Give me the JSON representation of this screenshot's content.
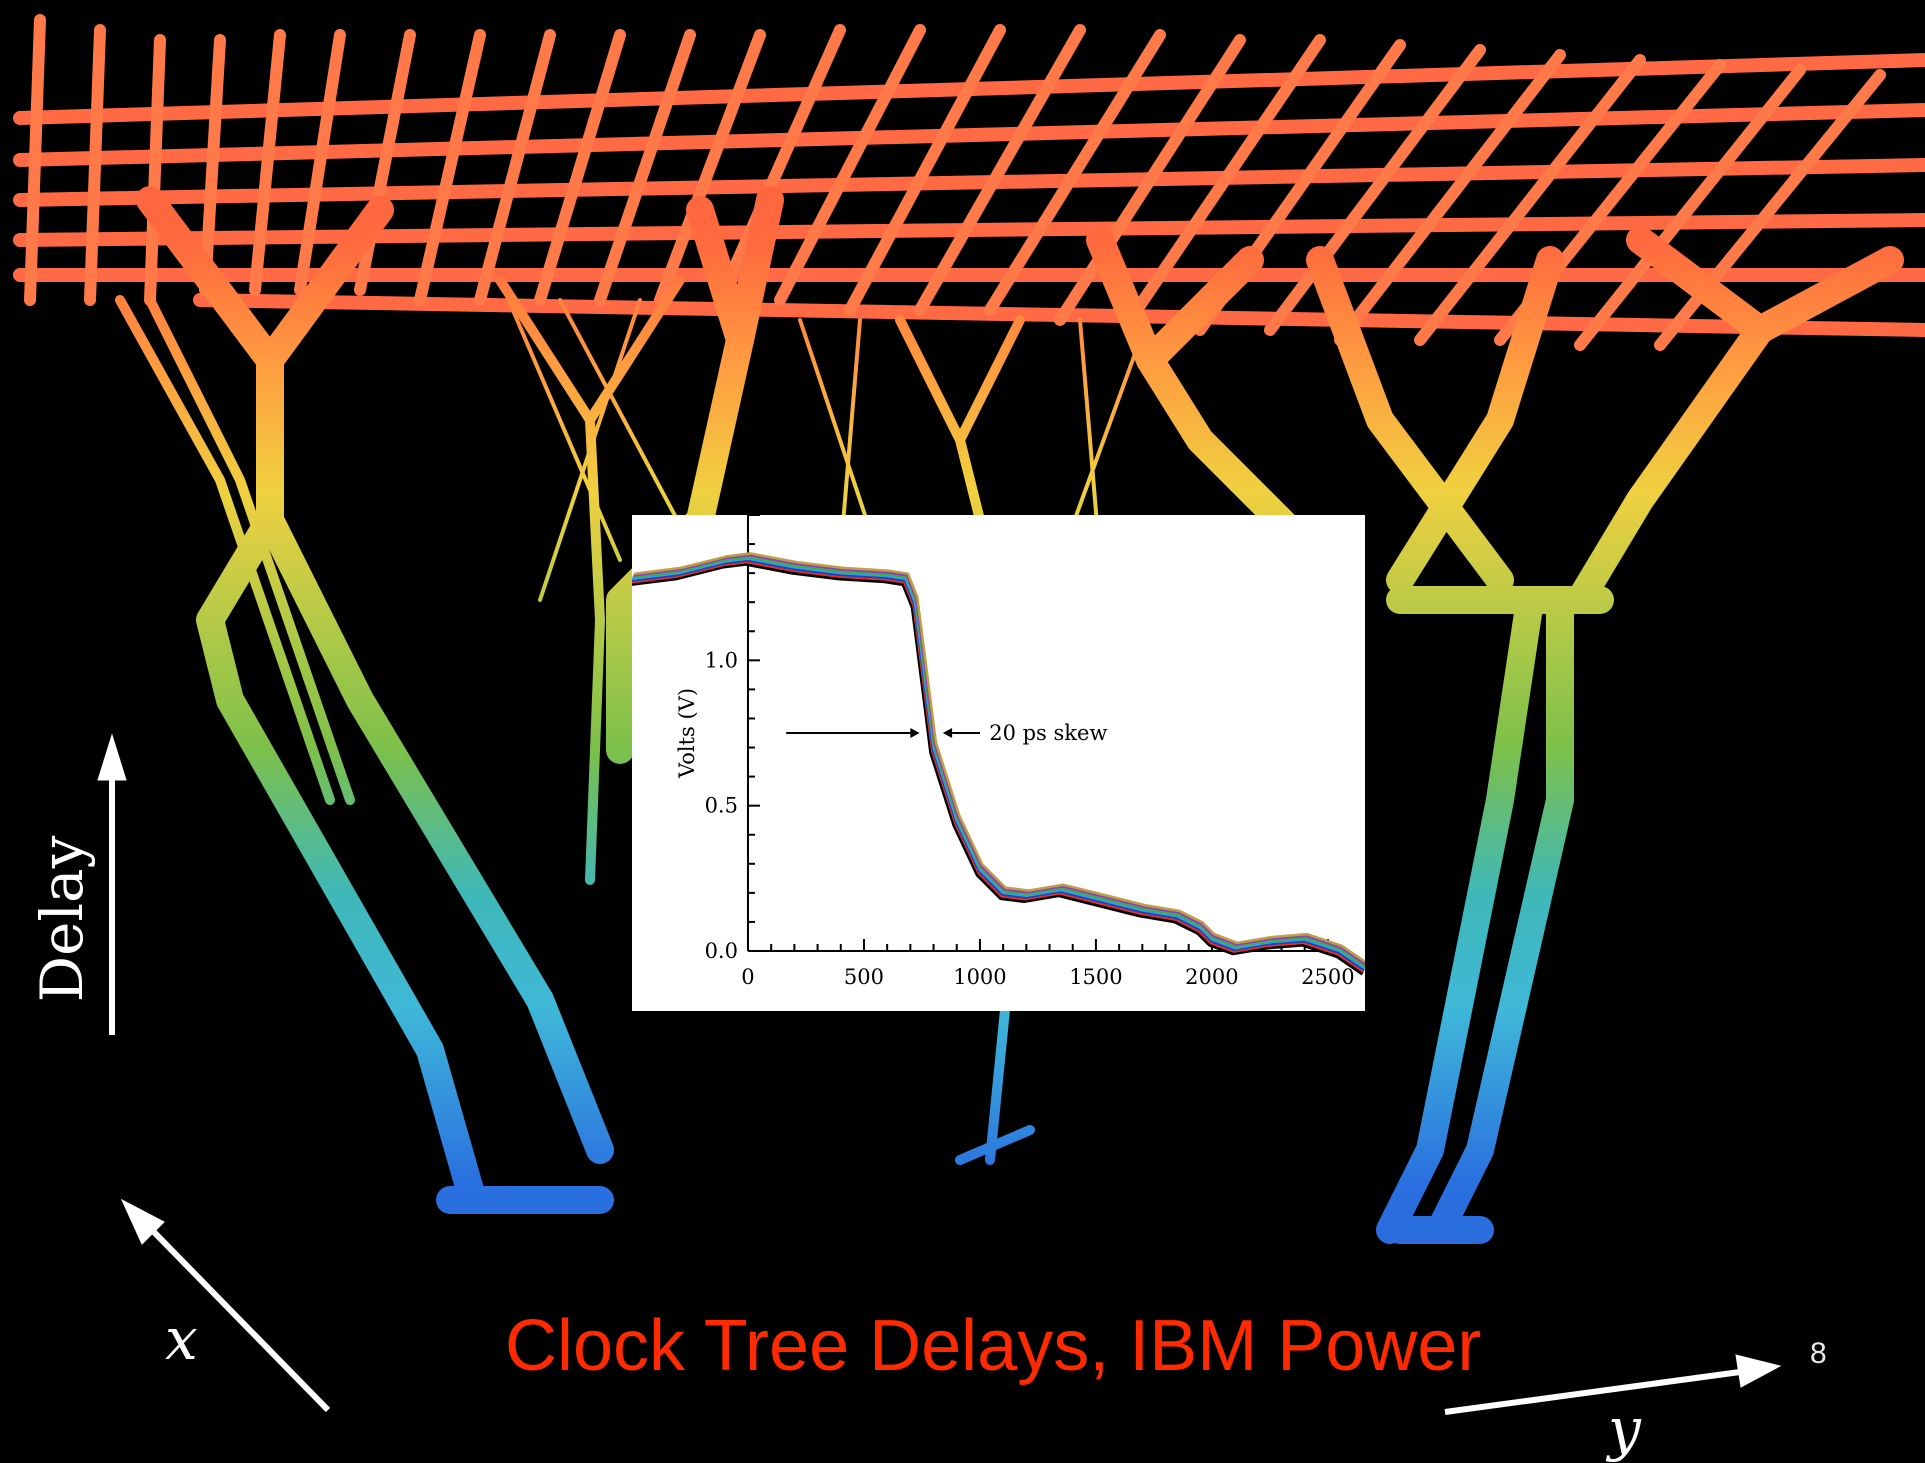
{
  "slide": {
    "title": "Clock Tree Delays, IBM Power",
    "page_number": "8",
    "axis_words": {
      "delay": "Delay",
      "x": "x",
      "y": "y"
    }
  },
  "colors": {
    "background": "#000000",
    "title": "#ff2a00",
    "tree_top": "#ff5a3c",
    "tree_upper": "#ff9a40",
    "tree_mid": "#f0d040",
    "tree_green": "#7cc04a",
    "tree_cyan": "#3fb8d8",
    "tree_bottom": "#2a70e0"
  },
  "chart_data": {
    "type": "line",
    "ylabel": "Volts  (V)",
    "xlabel": "",
    "xlim": [
      -500,
      2660
    ],
    "ylim": [
      0.0,
      1.5
    ],
    "x_ticks": [
      0,
      500,
      1000,
      1500,
      2000,
      2500
    ],
    "x_tick_labels": [
      "0",
      "500",
      "1000",
      "1500",
      "2000",
      "2500"
    ],
    "y_ticks": [
      0.0,
      0.5,
      1.0
    ],
    "y_tick_labels": [
      "0.0",
      "0.5",
      "1.0"
    ],
    "annotation": "20 ps skew",
    "series_colors": [
      "#000000",
      "#e83020",
      "#2040c0",
      "#30a0e0",
      "#40b040",
      "#9040c0",
      "#c0a040"
    ],
    "series": [
      {
        "x": [
          -500,
          -300,
          -100,
          0,
          200,
          400,
          600,
          680,
          720,
          760,
          800,
          900,
          1000,
          1100,
          1200,
          1350,
          1500,
          1700,
          1850,
          1950,
          2000,
          2100,
          2250,
          2400,
          2550,
          2660
        ],
        "values": [
          1.28,
          1.3,
          1.34,
          1.35,
          1.32,
          1.3,
          1.29,
          1.28,
          1.2,
          0.95,
          0.7,
          0.45,
          0.28,
          0.2,
          0.19,
          0.21,
          0.18,
          0.14,
          0.12,
          0.08,
          0.04,
          0.01,
          0.03,
          0.04,
          0.0,
          -0.06
        ]
      }
    ]
  }
}
